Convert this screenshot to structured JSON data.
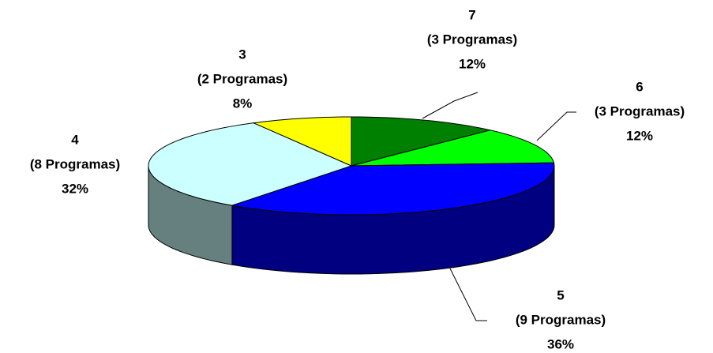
{
  "chart_data": {
    "type": "pie",
    "categories": [
      "7",
      "6",
      "5",
      "4",
      "3"
    ],
    "details": [
      "(3 Programas)",
      "(3 Programas)",
      "(9 Programas)",
      "(8 Programas)",
      "(2 Programas)"
    ],
    "values": [
      12,
      12,
      36,
      32,
      8
    ],
    "value_labels": [
      "12%",
      "12%",
      "36%",
      "32%",
      "8%"
    ],
    "colors": [
      "#008000",
      "#00ff00",
      "#0000ff",
      "#ccffff",
      "#ffff00"
    ],
    "side_colors": [
      "#005800",
      "#00b000",
      "#000080",
      "#668080",
      "#a0a000"
    ]
  }
}
